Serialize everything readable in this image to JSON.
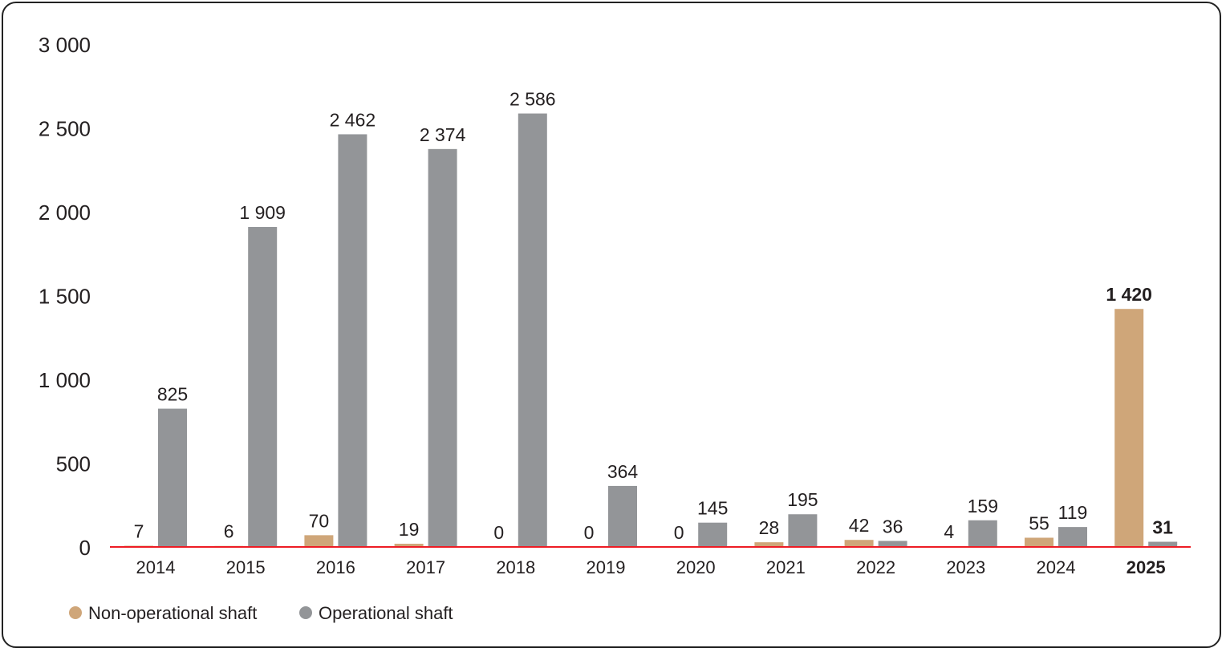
{
  "chart_data": {
    "type": "bar",
    "title": "",
    "xlabel": "",
    "ylabel": "",
    "ylim": [
      0,
      3000
    ],
    "yticks": [
      "0",
      "500",
      "1 000",
      "1 500",
      "2 000",
      "2 500",
      "3 000"
    ],
    "ytick_values": [
      0,
      500,
      1000,
      1500,
      2000,
      2500,
      3000
    ],
    "grid": false,
    "legend_position": "bottom-left",
    "categories": [
      "2014",
      "2015",
      "2016",
      "2017",
      "2018",
      "2019",
      "2020",
      "2021",
      "2022",
      "2023",
      "2024",
      "2025"
    ],
    "highlight_category": "2025",
    "series": [
      {
        "name": "Non-operational shaft",
        "color": "#cfa679",
        "values": [
          7,
          6,
          70,
          19,
          0,
          0,
          0,
          28,
          42,
          4,
          55,
          1420
        ],
        "labels": [
          "7",
          "6",
          "70",
          "19",
          "0",
          "0",
          "0",
          "28",
          "42",
          "4",
          "55",
          "1 420"
        ]
      },
      {
        "name": "Operational shaft",
        "color": "#939598",
        "values": [
          825,
          1909,
          2462,
          2374,
          2586,
          364,
          145,
          195,
          36,
          159,
          119,
          31
        ],
        "labels": [
          "825",
          "1 909",
          "2 462",
          "2 374",
          "2 586",
          "364",
          "145",
          "195",
          "36",
          "159",
          "119",
          "31"
        ]
      }
    ],
    "baseline_color": "#ee1c25"
  }
}
